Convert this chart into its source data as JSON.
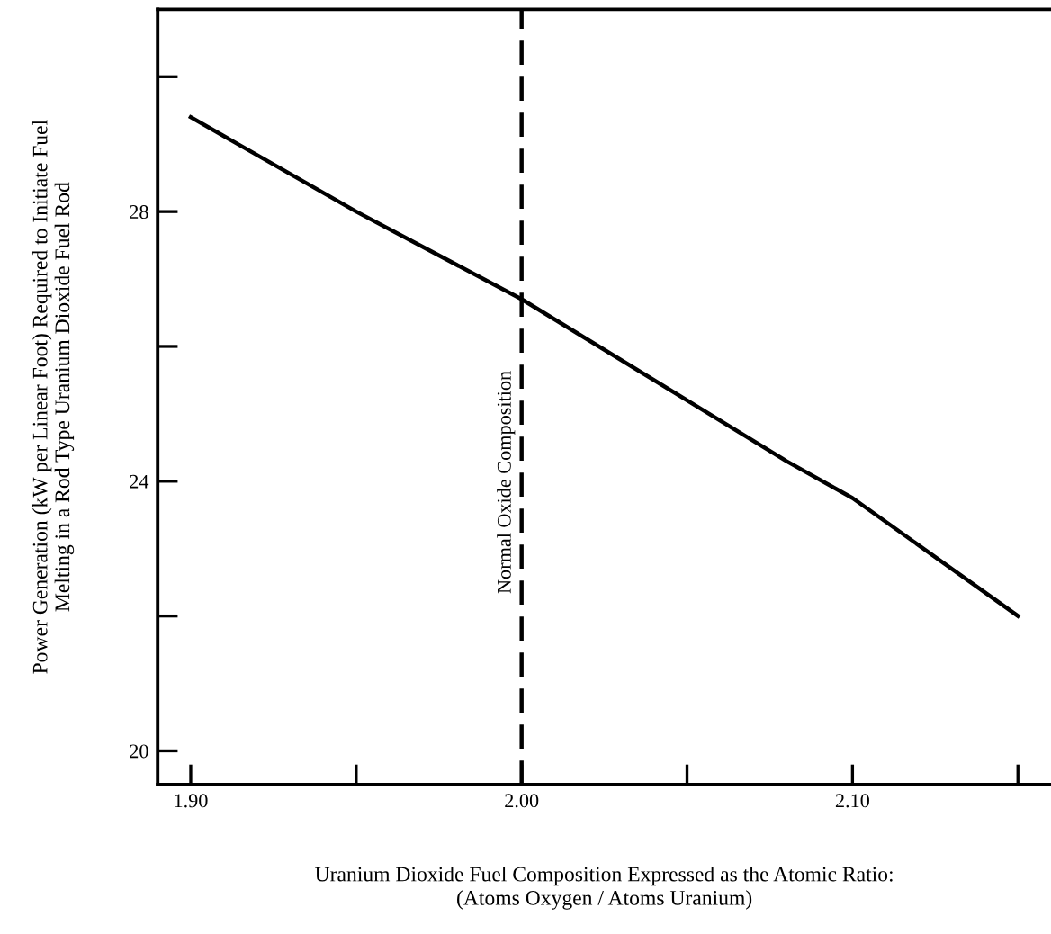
{
  "chart_data": {
    "type": "line",
    "xlabel": "Uranium Dioxide Fuel Composition Expressed as the Atomic Ratio:\n(Atoms Oxygen / Atoms Uranium)",
    "ylabel": "Power Generation (kW per Linear Foot) Required to Initiate Fuel\nMelting in a Rod Type Uranium Dioxide Fuel Rod",
    "x": [
      1.9,
      1.95,
      2.0,
      2.05,
      2.08,
      2.1,
      2.15
    ],
    "series": [
      {
        "color": "#000000",
        "values": [
          29.4,
          28.0,
          26.7,
          25.2,
          24.3,
          23.75,
          22.0
        ]
      }
    ],
    "xlim": [
      1.89,
      2.16
    ],
    "ylim": [
      19.5,
      31
    ],
    "xticks": [
      {
        "value": 1.9,
        "label": "1.90"
      },
      {
        "value": 1.95,
        "label": null
      },
      {
        "value": 2.0,
        "label": "2.00"
      },
      {
        "value": 2.05,
        "label": null
      },
      {
        "value": 2.1,
        "label": "2.10"
      },
      {
        "value": 2.15,
        "label": null
      }
    ],
    "yticks": [
      20,
      {
        "value": 22,
        "label": null
      },
      24,
      {
        "value": 26,
        "label": null
      },
      28,
      {
        "value": 30,
        "label": null
      }
    ],
    "ref_lines": [
      {
        "axis": "x",
        "value": 2.0,
        "label": "Normal Oxide Composition",
        "color": "#000000",
        "line_style": "dashed"
      }
    ],
    "marker": "none",
    "line_style": "solid"
  }
}
